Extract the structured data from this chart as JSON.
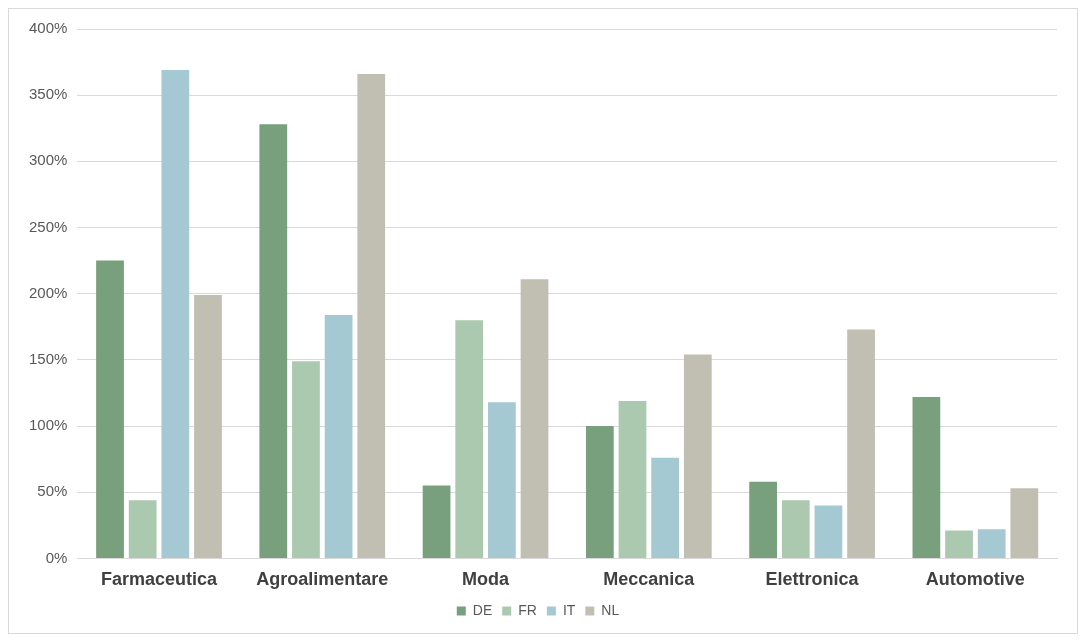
{
  "chart_data": {
    "type": "bar",
    "categories": [
      "Farmaceutica",
      "Agroalimentare",
      "Moda",
      "Meccanica",
      "Elettronica",
      "Automotive"
    ],
    "series": [
      {
        "name": "DE",
        "color": "#78a07c",
        "values": [
          225,
          328,
          55,
          100,
          58,
          122
        ]
      },
      {
        "name": "FR",
        "color": "#abc9ae",
        "values": [
          44,
          149,
          180,
          119,
          44,
          21
        ]
      },
      {
        "name": "IT",
        "color": "#a5c9d2",
        "values": [
          369,
          184,
          118,
          76,
          40,
          22
        ]
      },
      {
        "name": "NL",
        "color": "#c0bfb2",
        "values": [
          199,
          366,
          211,
          154,
          173,
          53
        ]
      }
    ],
    "ylim": [
      0,
      400
    ],
    "yticks": [
      {
        "value": 0,
        "label": "0%"
      },
      {
        "value": 50,
        "label": "50%"
      },
      {
        "value": 100,
        "label": "100%"
      },
      {
        "value": 150,
        "label": "150%"
      },
      {
        "value": 200,
        "label": "200%"
      },
      {
        "value": 250,
        "label": "250%"
      },
      {
        "value": 300,
        "label": "300%"
      },
      {
        "value": 350,
        "label": "350%"
      },
      {
        "value": 400,
        "label": "400%"
      }
    ],
    "grid": "y",
    "legend": "bottom"
  }
}
